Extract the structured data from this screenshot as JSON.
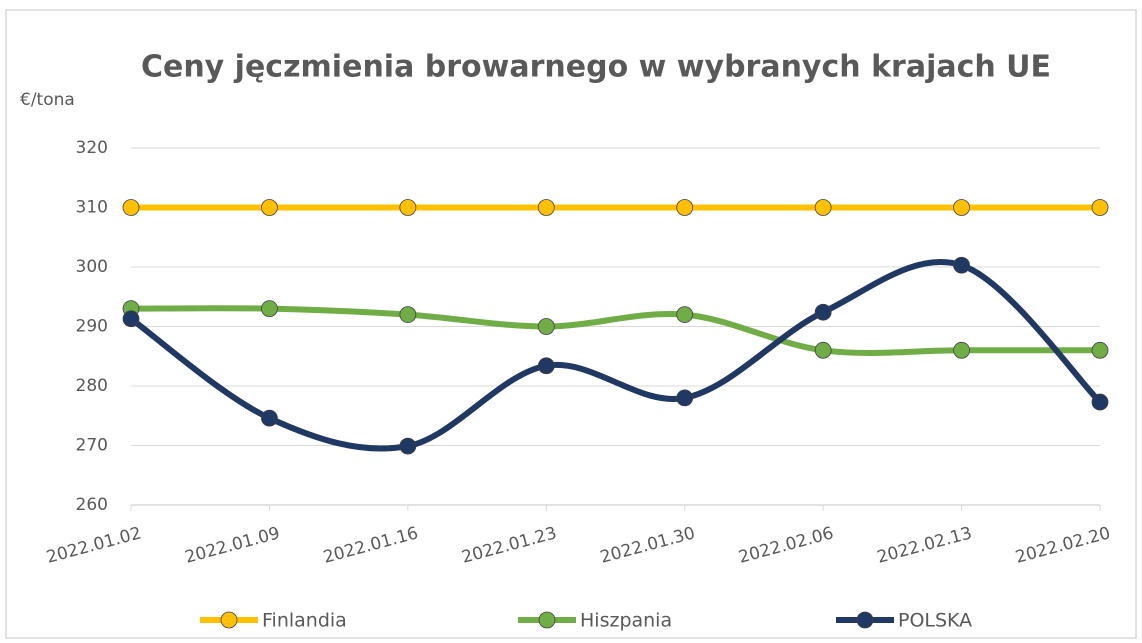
{
  "chart_data": {
    "type": "line",
    "title": "Ceny jęczmienia browarnego w wybranych krajach  UE",
    "y_axis_label": "€/tona",
    "categories": [
      "2022.01.02",
      "2022.01.09",
      "2022.01.16",
      "2022.01.23",
      "2022.01.30",
      "2022.02.06",
      "2022.02.13",
      "2022.02.20"
    ],
    "series": [
      {
        "name": "Finlandia",
        "color": "#ffc000",
        "values": [
          310,
          310,
          310,
          310,
          310,
          310,
          310,
          310
        ]
      },
      {
        "name": "Hiszpania",
        "color": "#70ad47",
        "values": [
          293,
          293,
          292,
          290,
          292,
          286,
          286,
          286
        ]
      },
      {
        "name": "POLSKA",
        "color": "#203864",
        "values": [
          291.3,
          274.6,
          269.9,
          283.4,
          278,
          292.4,
          300.3,
          277.3
        ]
      }
    ],
    "ylim": [
      260,
      320
    ],
    "yticks": [
      260,
      270,
      280,
      290,
      300,
      310,
      320
    ],
    "grid": true,
    "smooth": true,
    "legend": "bottom"
  }
}
